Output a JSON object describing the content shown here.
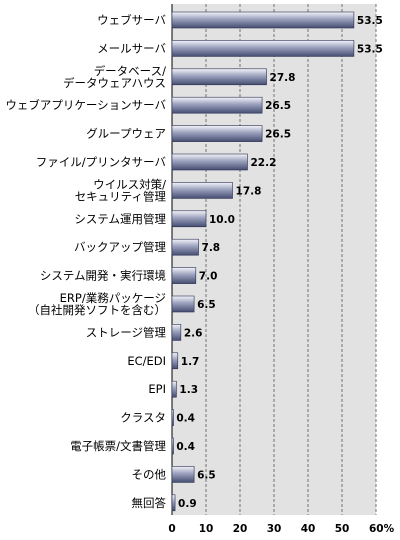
{
  "chart_data": {
    "type": "bar",
    "orientation": "horizontal",
    "categories": [
      [
        "ウェブサーバ"
      ],
      [
        "メールサーバ"
      ],
      [
        "データベース/",
        "データウェアハウス"
      ],
      [
        "ウェブアプリケーションサーバ"
      ],
      [
        "グループウェア"
      ],
      [
        "ファイル/プリンタサーバ"
      ],
      [
        "ウイルス対策/",
        "セキュリティ管理"
      ],
      [
        "システム運用管理"
      ],
      [
        "バックアップ管理"
      ],
      [
        "システム開発・実行環境"
      ],
      [
        "ERP/業務パッケージ",
        "（自社開発ソフトを含む）"
      ],
      [
        "ストレージ管理"
      ],
      [
        "EC/EDI"
      ],
      [
        "EPI"
      ],
      [
        "クラスタ"
      ],
      [
        "電子帳票/文書管理"
      ],
      [
        "その他"
      ],
      [
        "無回答"
      ]
    ],
    "values": [
      53.5,
      53.5,
      27.8,
      26.5,
      26.5,
      22.2,
      17.8,
      10.0,
      7.8,
      7.0,
      6.5,
      2.6,
      1.7,
      1.3,
      0.4,
      0.4,
      6.5,
      0.9
    ],
    "value_labels": [
      "53.5",
      "53.5",
      "27.8",
      "26.5",
      "26.5",
      "22.2",
      "17.8",
      "10.0",
      "7.8",
      "7.0",
      "6.5",
      "2.6",
      "1.7",
      "1.3",
      "0.4",
      "0.4",
      "6.5",
      "0.9"
    ],
    "xlim": [
      0,
      60
    ],
    "ticks": [
      0,
      10,
      20,
      30,
      40,
      50,
      60
    ],
    "tick_labels": [
      "0",
      "10",
      "20",
      "30",
      "40",
      "50",
      "60%"
    ],
    "grid": true,
    "grid_style": "dashed",
    "legend": "none",
    "colors": {
      "plot_background": "#e2e2e2",
      "bar_light": "#f4f4fa",
      "bar_mid": "#9aa0bc",
      "bar_dark": "#454d72",
      "bar_edge": "#2a3050",
      "grid": "#555555"
    }
  }
}
